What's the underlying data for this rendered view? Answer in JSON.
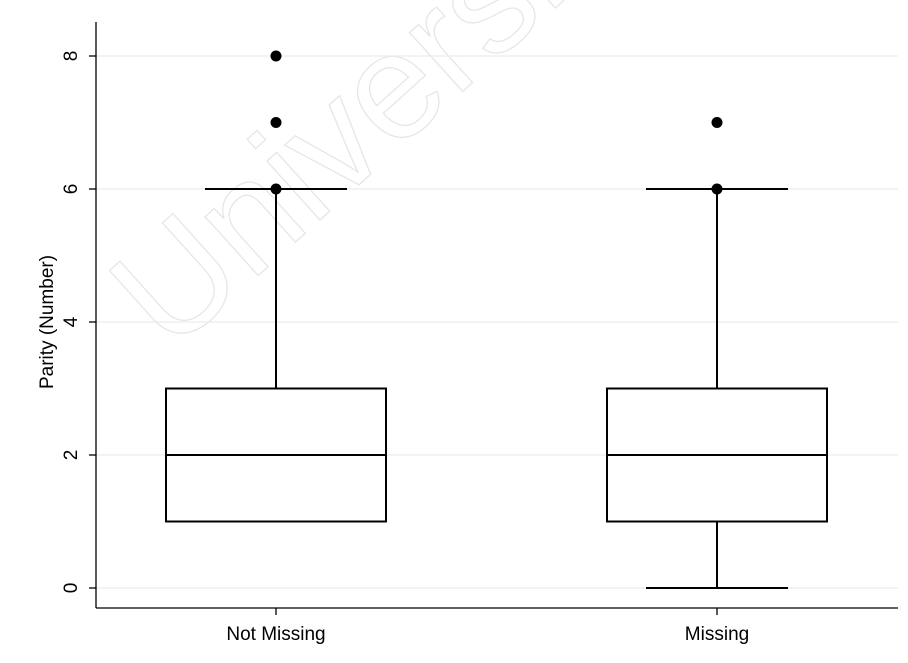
{
  "watermark": "University Of",
  "chart_data": {
    "type": "box",
    "title": "",
    "xlabel": "",
    "ylabel": "Parity (Number)",
    "ylim": [
      -0.3,
      8.4
    ],
    "yticks": [
      0,
      2,
      4,
      6,
      8
    ],
    "grid": true,
    "categories": [
      "Not Missing",
      "Missing"
    ],
    "boxes": [
      {
        "category": "Not Missing",
        "whisker_low": 1,
        "q1": 1,
        "median": 2,
        "q3": 3,
        "whisker_high": 6,
        "outliers": [
          6,
          7,
          8
        ]
      },
      {
        "category": "Missing",
        "whisker_low": 0,
        "q1": 1,
        "median": 2,
        "q3": 3,
        "whisker_high": 6,
        "outliers": [
          6,
          7
        ]
      }
    ]
  }
}
